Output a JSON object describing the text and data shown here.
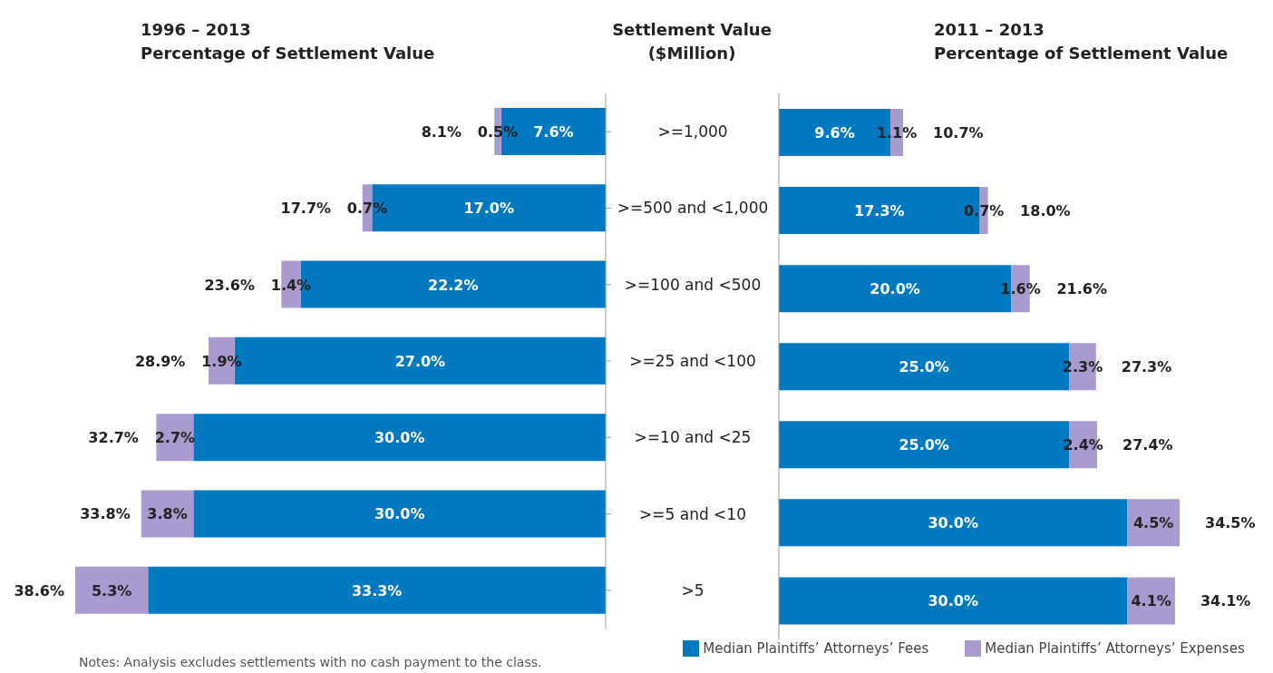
{
  "chart_data": [
    {
      "type": "bar",
      "orientation": "horizontal",
      "stacked": true,
      "title": "1996 – 2013",
      "subtitle": "Percentage of Settlement Value",
      "ylabel": "Settlement Value ($Million)",
      "categories": [
        ">=1,000",
        ">=500 and <1,000",
        ">=100 and <500",
        ">=25 and <100",
        ">=10 and <25",
        ">=5 and <10",
        ">5"
      ],
      "tick_labels": "y",
      "series": [
        {
          "color": "#0079c1",
          "values": [
            7.6,
            17.0,
            22.2,
            27.0,
            30.0,
            30.0,
            33.3
          ],
          "value_labels": [
            "7.6%",
            "17.0%",
            "22.2%",
            "27.0%",
            "30.0%",
            "30.0%",
            "33.3%"
          ]
        },
        {
          "color": "#a99ad0",
          "values": [
            0.5,
            0.7,
            1.4,
            1.9,
            2.7,
            3.8,
            5.3
          ],
          "value_labels": [
            "0.5%",
            "0.7%",
            "1.4%",
            "1.9%",
            "2.7%",
            "3.8%",
            "5.3%"
          ]
        }
      ],
      "totals": [
        "8.1%",
        "17.7%",
        "23.6%",
        "28.9%",
        "32.7%",
        "33.8%",
        "38.6%"
      ],
      "annotations": [
        "Notes: Analysis excludes settlements with no cash payment to the class."
      ]
    },
    {
      "type": "bar",
      "orientation": "horizontal",
      "stacked": true,
      "title": "2011 – 2013",
      "subtitle": "Percentage of Settlement Value",
      "tick_labels": false,
      "legend": "bottom",
      "series": [
        {
          "name": "Median Plaintiffs’ Attorneys’ Fees",
          "color": "#0079c1",
          "values": [
            9.6,
            17.3,
            20.0,
            25.0,
            25.0,
            30.0,
            30.0
          ],
          "value_labels": [
            "9.6%",
            "17.3%",
            "20.0%",
            "25.0%",
            "25.0%",
            "30.0%",
            "30.0%"
          ]
        },
        {
          "name": "Median Plaintiffs’ Attorneys’ Expenses",
          "color": "#a99ad0",
          "values": [
            1.1,
            0.7,
            1.6,
            2.3,
            2.4,
            4.5,
            4.1
          ],
          "value_labels": [
            "1.1%",
            "0.7%",
            "1.6%",
            "2.3%",
            "2.4%",
            "4.5%",
            "4.1%"
          ]
        }
      ],
      "totals": [
        "10.7%",
        "18.0%",
        "21.6%",
        "27.3%",
        "27.4%",
        "34.5%",
        "34.1%"
      ]
    }
  ]
}
